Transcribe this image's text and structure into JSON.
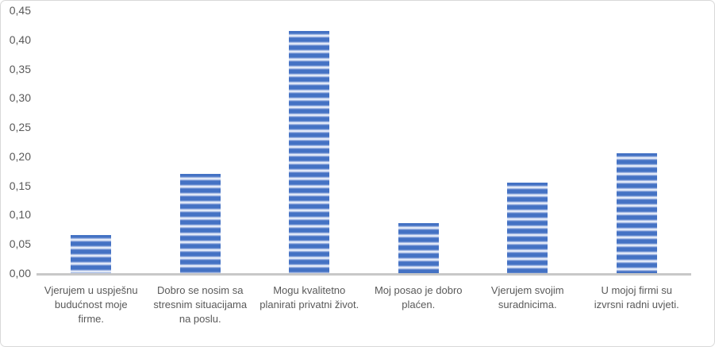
{
  "chart_data": {
    "type": "bar",
    "title": "",
    "xlabel": "",
    "ylabel": "",
    "categories": [
      "Vjerujem u uspješnu budućnost moje firme.",
      "Dobro se nosim sa stresnim situacijama na poslu.",
      "Mogu kvalitetno planirati privatni život.",
      "Moj posao je dobro plaćen.",
      "Vjerujem svojim suradnicima.",
      "U mojoj firmi su izvrsni radni uvjeti."
    ],
    "category_lines": [
      [
        "Vjerujem u uspješnu",
        "budućnost moje",
        "firme."
      ],
      [
        "Dobro se nosim sa",
        "stresnim situacijama",
        "na poslu."
      ],
      [
        "Mogu kvalitetno",
        "planirati privatni život."
      ],
      [
        "Moj posao je dobro",
        "plaćen."
      ],
      [
        "Vjerujem svojim",
        "suradnicima."
      ],
      [
        "U mojoj firmi su",
        "izvrsni radni uvjeti."
      ]
    ],
    "values": [
      0.065,
      0.17,
      0.415,
      0.085,
      0.155,
      0.205
    ],
    "ylim": [
      0,
      0.45
    ],
    "ytick_step": 0.05,
    "ytick_labels": [
      "0,00",
      "0,05",
      "0,10",
      "0,15",
      "0,20",
      "0,25",
      "0,30",
      "0,35",
      "0,40",
      "0,45"
    ],
    "decimal_separator": ",",
    "grid": false,
    "legend": "none",
    "bar_fill": "horizontal-stripe-pattern",
    "colors": {
      "bar_stripe_dark": "#4472c4",
      "bar_stripe_mid": "#8fa8dc",
      "bar_stripe_light": "#e2eaf8",
      "axis_line": "#c8c8c8",
      "tick_text": "#595959",
      "category_text": "#595959",
      "chart_border": "#d9d9d9",
      "background": "#ffffff"
    }
  }
}
